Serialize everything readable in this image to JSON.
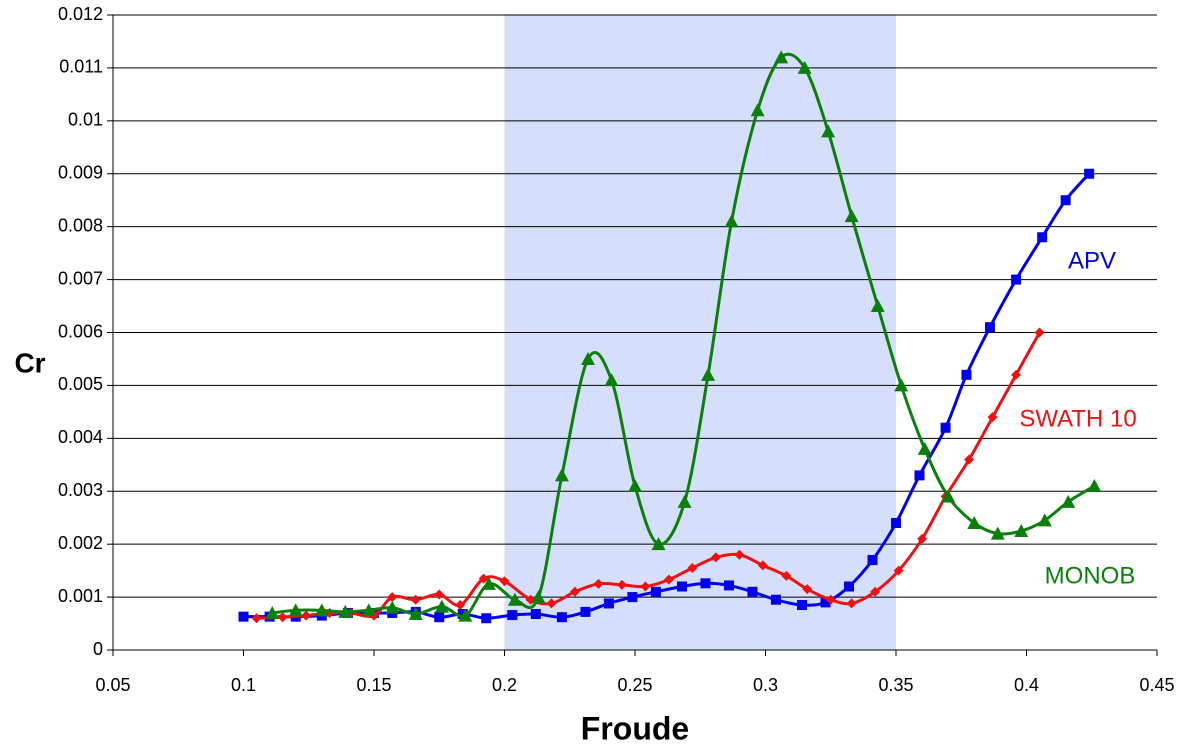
{
  "chart_data": {
    "type": "line",
    "x_label": "Froude",
    "y_label": "Cr",
    "xlim": [
      0.05,
      0.45
    ],
    "xticks": [
      0.05,
      0.1,
      0.15,
      0.2,
      0.25,
      0.3,
      0.35,
      0.4,
      0.45
    ],
    "ylim": [
      0,
      0.012
    ],
    "yticks": [
      0,
      0.001,
      0.002,
      0.003,
      0.004,
      0.005,
      0.006,
      0.007,
      0.008,
      0.009,
      0.01,
      0.011,
      0.012
    ],
    "grid": true,
    "shade_x": [
      0.2,
      0.35
    ],
    "shade_color": "#d5defa",
    "series": [
      {
        "name": "APV",
        "color": "#0000ee",
        "marker": "square",
        "x": [
          0.1,
          0.11,
          0.12,
          0.13,
          0.14,
          0.15,
          0.157,
          0.166,
          0.175,
          0.184,
          0.193,
          0.203,
          0.212,
          0.222,
          0.231,
          0.24,
          0.249,
          0.258,
          0.268,
          0.277,
          0.286,
          0.295,
          0.304,
          0.314,
          0.323,
          0.332,
          0.341,
          0.35,
          0.359,
          0.369,
          0.377,
          0.386,
          0.396,
          0.406,
          0.415,
          0.424
        ],
        "values": [
          0.00063,
          0.00063,
          0.00063,
          0.00065,
          0.0007,
          0.0007,
          0.0007,
          0.00072,
          0.00062,
          0.00068,
          0.0006,
          0.00066,
          0.00068,
          0.00062,
          0.00072,
          0.00088,
          0.001,
          0.0011,
          0.0012,
          0.00126,
          0.00122,
          0.0011,
          0.00095,
          0.00085,
          0.0009,
          0.0012,
          0.0017,
          0.0024,
          0.0033,
          0.0042,
          0.0052,
          0.0061,
          0.007,
          0.0078,
          0.0085,
          0.009
        ]
      },
      {
        "name": "SWATH 10",
        "color": "#ee1111",
        "marker": "diamond",
        "x": [
          0.105,
          0.115,
          0.124,
          0.133,
          0.141,
          0.15,
          0.157,
          0.166,
          0.175,
          0.183,
          0.192,
          0.2,
          0.21,
          0.218,
          0.227,
          0.236,
          0.245,
          0.254,
          0.263,
          0.272,
          0.281,
          0.29,
          0.299,
          0.308,
          0.316,
          0.325,
          0.333,
          0.342,
          0.351,
          0.36,
          0.369,
          0.378,
          0.387,
          0.396,
          0.405
        ],
        "values": [
          0.0006,
          0.00062,
          0.00065,
          0.0007,
          0.0007,
          0.00065,
          0.001,
          0.00095,
          0.00105,
          0.00085,
          0.00135,
          0.0013,
          0.00095,
          0.00088,
          0.0011,
          0.00125,
          0.00123,
          0.0012,
          0.00133,
          0.00155,
          0.00175,
          0.0018,
          0.0016,
          0.0014,
          0.00115,
          0.00095,
          0.00088,
          0.0011,
          0.0015,
          0.0021,
          0.0029,
          0.0036,
          0.0044,
          0.0052,
          0.006
        ]
      },
      {
        "name": "MONOB",
        "color": "#0a800a",
        "marker": "triangle",
        "x": [
          0.111,
          0.12,
          0.13,
          0.139,
          0.148,
          0.157,
          0.166,
          0.176,
          0.185,
          0.194,
          0.204,
          0.213,
          0.222,
          0.232,
          0.241,
          0.25,
          0.259,
          0.269,
          0.278,
          0.287,
          0.297,
          0.306,
          0.315,
          0.324,
          0.333,
          0.343,
          0.352,
          0.361,
          0.37,
          0.38,
          0.389,
          0.398,
          0.407,
          0.416,
          0.426
        ],
        "values": [
          0.0007,
          0.00075,
          0.00075,
          0.00072,
          0.00075,
          0.0008,
          0.00068,
          0.00082,
          0.00065,
          0.00125,
          0.00095,
          0.001,
          0.0033,
          0.0055,
          0.0051,
          0.0031,
          0.002,
          0.0028,
          0.0052,
          0.0081,
          0.0102,
          0.0112,
          0.011,
          0.0098,
          0.0082,
          0.0065,
          0.005,
          0.0038,
          0.0029,
          0.0024,
          0.0022,
          0.00225,
          0.00245,
          0.0028,
          0.0031
        ]
      }
    ]
  }
}
